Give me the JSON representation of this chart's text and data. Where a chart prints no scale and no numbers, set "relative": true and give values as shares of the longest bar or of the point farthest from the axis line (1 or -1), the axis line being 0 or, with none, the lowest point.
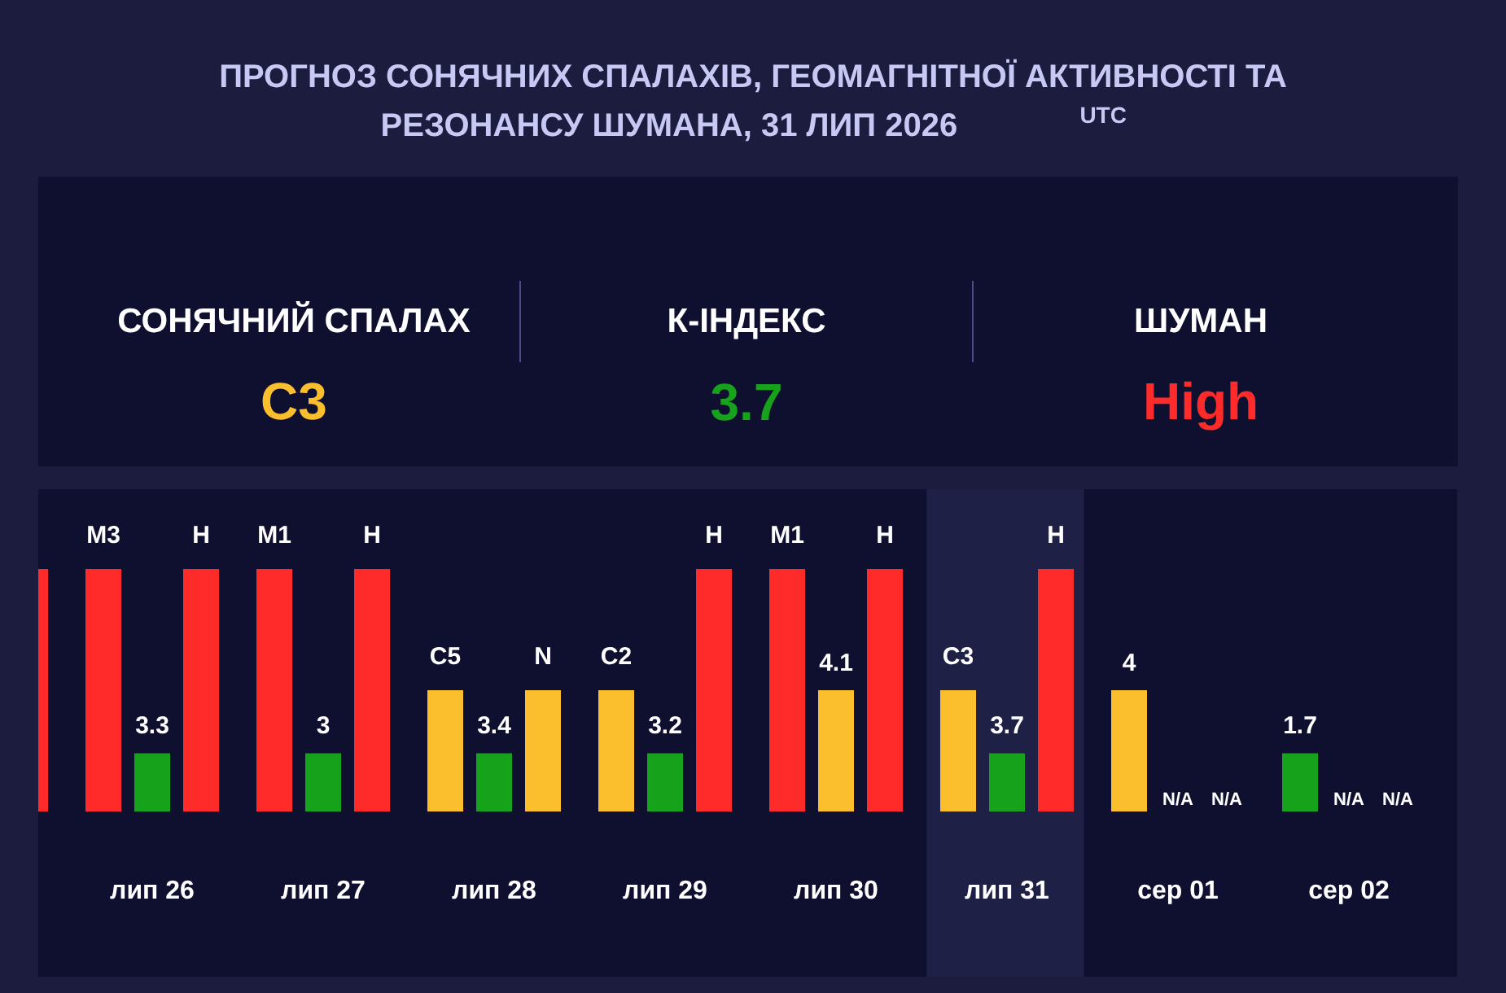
{
  "chart_data": [
    {
      "type": "other",
      "title": "ПРОГНОЗ СОНЯЧНИХ СПАЛАХІВ, ГЕОМАГНІТНОЇ АКТИВНОСТІ ТА РЕЗОНАНСУ ШУМАНА, 31 ЛИП 2026 $^{UTC}$",
      "annotations": [
        "СОНЯЧНИЙ СПАЛАХ",
        "C3",
        "К-ІНДЕКС",
        "3.7",
        "ШУМАН",
        "High"
      ],
      "colors": [
        "#ffffff",
        "#fbbf2e",
        "#ffffff",
        "#17a21c",
        "#ffffff",
        "#ff2b2b"
      ]
    },
    {
      "type": "bar",
      "relative": true,
      "categories": [
        null,
        "лип 26",
        "лип 27",
        "лип 28",
        "лип 29",
        "лип 30",
        "лип 31",
        "сер 01",
        "сер 02"
      ],
      "series": [
        {
          "colors": [
            "#ff2b2b",
            "#ff2b2b",
            "#ff2b2b",
            "#fbbf2e",
            "#fbbf2e",
            "#ff2b2b",
            "#fbbf2e",
            "#fbbf2e",
            "#17a21c"
          ],
          "values": [
            null,
            1,
            1,
            0.5,
            0.5,
            1,
            0.5,
            0.5,
            0.24
          ]
        },
        {
          "colors": [
            "#17a21c",
            "#17a21c",
            "#17a21c",
            "#17a21c",
            "#17a21c",
            "#fbbf2e",
            "#17a21c",
            "#17a21c",
            "#17a21c"
          ],
          "values": [
            null,
            0.24,
            0.24,
            0.24,
            0.24,
            0.5,
            0.24,
            null,
            null
          ]
        },
        {
          "colors": [
            "#ff2b2b",
            "#ff2b2b",
            "#ff2b2b",
            "#fbbf2e",
            "#ff2b2b",
            "#ff2b2b",
            "#ff2b2b",
            "#ff2b2b",
            "#ff2b2b"
          ],
          "values": [
            1,
            1,
            1,
            0.5,
            1,
            1,
            1,
            null,
            null
          ]
        }
      ],
      "annotations": [
        "M3",
        "3.3",
        "H",
        "M1",
        "3",
        "H",
        "C5",
        "3.4",
        "N",
        "C2",
        "3.2",
        "H",
        "M1",
        "4.1",
        "H",
        "C3",
        "3.7",
        "H",
        "4",
        "N/A",
        "N/A",
        "1.7",
        "N/A",
        "N/A"
      ],
      "bands": [
        {
          "axis": "x",
          "from": "лип 31",
          "to": "лип 31",
          "color": "#1e2045"
        }
      ]
    }
  ]
}
